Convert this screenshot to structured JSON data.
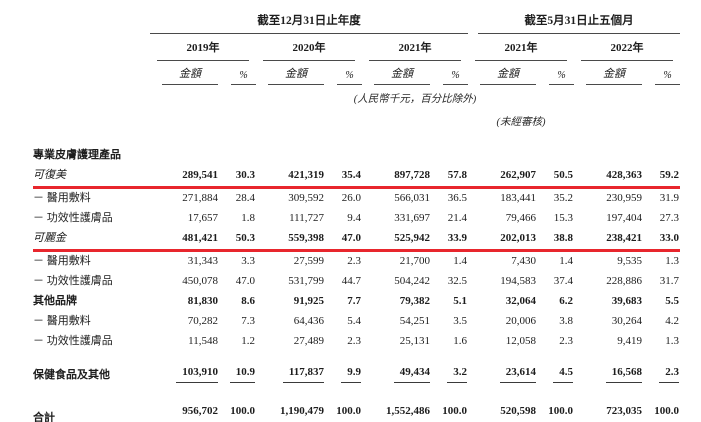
{
  "table": {
    "period_groups": [
      {
        "label": "截至12月31日止年度",
        "years": [
          "2019年",
          "2020年",
          "2021年"
        ]
      },
      {
        "label": "截至5月31日止五個月",
        "years": [
          "2021年",
          "2022年"
        ]
      }
    ],
    "col_headers": {
      "amount": "金額",
      "pct": "%"
    },
    "notes": {
      "currency": "(人民幣千元，百分比除外)",
      "unaudited": "(未經審核)"
    },
    "annotations": {
      "highlight_color": "#e8262d",
      "highlighted_rows": [
        "可復美",
        "可麗金"
      ]
    },
    "rows": [
      {
        "type": "section",
        "label": "專業皮膚護理產品",
        "values": []
      },
      {
        "type": "brand",
        "label": "可復美",
        "red_line": true,
        "values": [
          "289,541",
          "30.3",
          "421,319",
          "35.4",
          "897,728",
          "57.8",
          "262,907",
          "50.5",
          "428,363",
          "59.2"
        ]
      },
      {
        "type": "sub",
        "label": "－ 醫用敷料",
        "values": [
          "271,884",
          "28.4",
          "309,592",
          "26.0",
          "566,031",
          "36.5",
          "183,441",
          "35.2",
          "230,959",
          "31.9"
        ]
      },
      {
        "type": "sub",
        "label": "－ 功效性護膚品",
        "values": [
          "17,657",
          "1.8",
          "111,727",
          "9.4",
          "331,697",
          "21.4",
          "79,466",
          "15.3",
          "197,404",
          "27.3"
        ]
      },
      {
        "type": "brand",
        "label": "可麗金",
        "red_line": true,
        "values": [
          "481,421",
          "50.3",
          "559,398",
          "47.0",
          "525,942",
          "33.9",
          "202,013",
          "38.8",
          "238,421",
          "33.0"
        ]
      },
      {
        "type": "sub",
        "label": "－ 醫用敷料",
        "values": [
          "31,343",
          "3.3",
          "27,599",
          "2.3",
          "21,700",
          "1.4",
          "7,430",
          "1.4",
          "9,535",
          "1.3"
        ]
      },
      {
        "type": "sub",
        "label": "－ 功效性護膚品",
        "values": [
          "450,078",
          "47.0",
          "531,799",
          "44.7",
          "504,242",
          "32.5",
          "194,583",
          "37.4",
          "228,886",
          "31.7"
        ]
      },
      {
        "type": "bold",
        "label": "其他品牌",
        "values": [
          "81,830",
          "8.6",
          "91,925",
          "7.7",
          "79,382",
          "5.1",
          "32,064",
          "6.2",
          "39,683",
          "5.5"
        ]
      },
      {
        "type": "sub",
        "label": "－ 醫用敷料",
        "values": [
          "70,282",
          "7.3",
          "64,436",
          "5.4",
          "54,251",
          "3.5",
          "20,006",
          "3.8",
          "30,264",
          "4.2"
        ]
      },
      {
        "type": "sub",
        "label": "－ 功效性護膚品",
        "values": [
          "11,548",
          "1.2",
          "27,489",
          "2.3",
          "25,131",
          "1.6",
          "12,058",
          "2.3",
          "9,419",
          "1.3"
        ]
      },
      {
        "type": "spacer",
        "height": 11
      },
      {
        "type": "bold",
        "label": "保健食品及其他",
        "underline": "single",
        "values": [
          "103,910",
          "10.9",
          "117,837",
          "9.9",
          "49,434",
          "3.2",
          "23,614",
          "4.5",
          "16,568",
          "2.3"
        ]
      },
      {
        "type": "spacer",
        "height": 16
      },
      {
        "type": "total",
        "label": "合計",
        "underline": "double",
        "values": [
          "956,702",
          "100.0",
          "1,190,479",
          "100.0",
          "1,552,486",
          "100.0",
          "520,598",
          "100.0",
          "723,035",
          "100.0"
        ]
      }
    ]
  }
}
